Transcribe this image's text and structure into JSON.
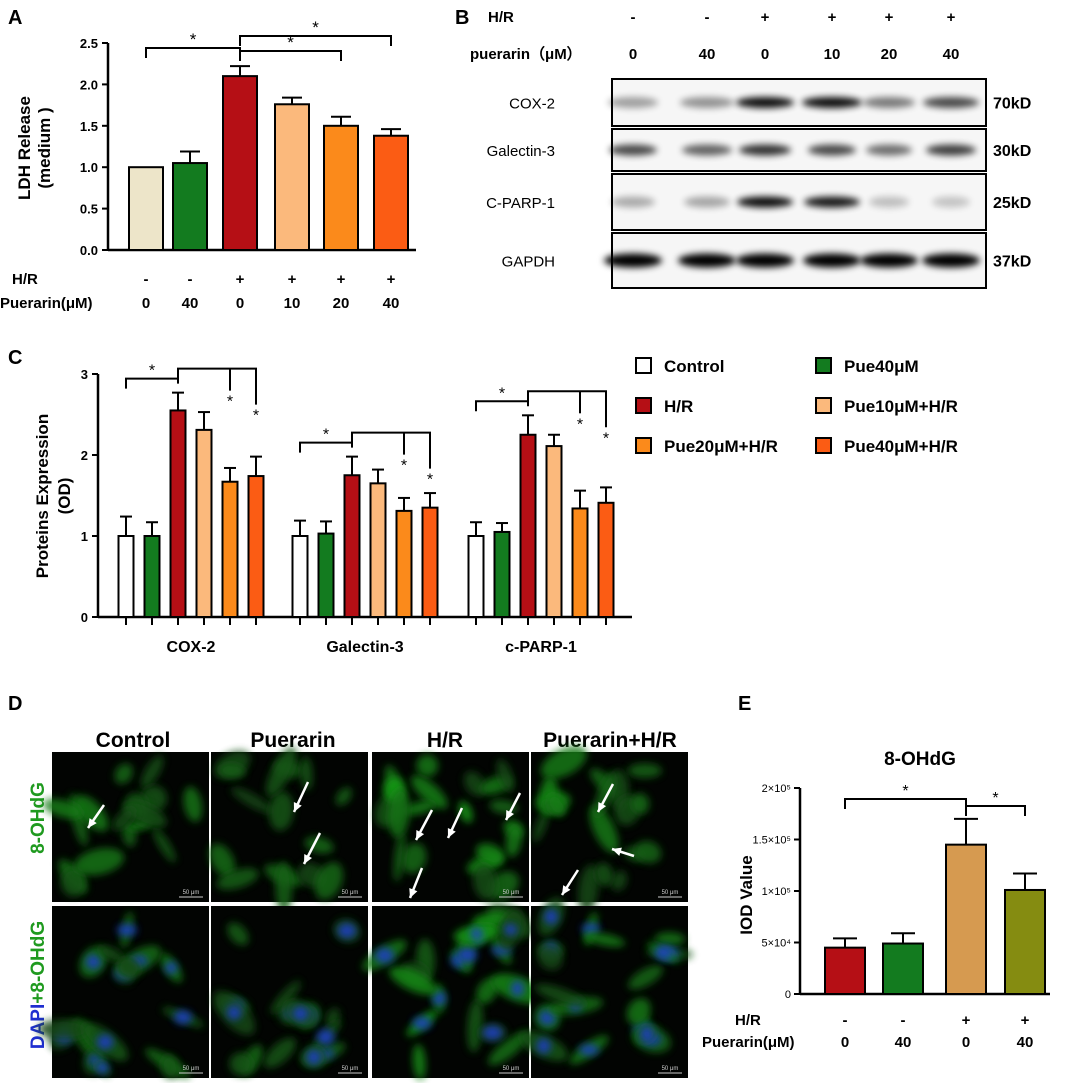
{
  "panels": {
    "A": {
      "letter": "A"
    },
    "B": {
      "letter": "B"
    },
    "C": {
      "letter": "C"
    },
    "D": {
      "letter": "D"
    },
    "E": {
      "letter": "E"
    }
  },
  "colors": {
    "control": "#ede5c9",
    "pue40": "#137b1f",
    "hr": "#b50f15",
    "pue10": "#fbb97c",
    "pue20": "#fb8a1b",
    "pue40hr": "#fb5c14",
    "e_pue_hr": "#d69a50",
    "e_pue_hr40": "#858c11",
    "green_label": "#1f9a1f",
    "blue_label": "#1f2fd0"
  },
  "chart_data": [
    {
      "panel": "A",
      "type": "bar",
      "ylabel": "LDH Release\n(medium )",
      "ylim": [
        0,
        2.5
      ],
      "yticks": [
        "0.0",
        "0.5",
        "1.0",
        "1.5",
        "2.0",
        "2.5"
      ],
      "values": [
        1.0,
        1.05,
        2.1,
        1.76,
        1.5,
        1.38
      ],
      "errors": [
        0,
        0.14,
        0.12,
        0.08,
        0.11,
        0.08
      ],
      "condition_rows": [
        {
          "label": "H/R",
          "values": [
            "-",
            "-",
            "+",
            "+",
            "+",
            "+"
          ]
        },
        {
          "label": "Puerarin(μM)",
          "values": [
            "0",
            "40",
            "0",
            "10",
            "20",
            "40"
          ]
        }
      ],
      "significance": [
        "*",
        "*",
        "*"
      ]
    },
    {
      "panel": "C",
      "type": "bar",
      "ylabel": "Proteins Expression\n(OD)",
      "ylim": [
        0,
        3
      ],
      "yticks": [
        "0",
        "1",
        "2",
        "3"
      ],
      "categories": [
        "COX-2",
        "Galectin-3",
        "c-PARP-1"
      ],
      "series": [
        {
          "name": "Control",
          "values": [
            1.0,
            1.0,
            1.0
          ],
          "errors": [
            0.24,
            0.19,
            0.17
          ]
        },
        {
          "name": "Pue40μM",
          "values": [
            1.0,
            1.03,
            1.05
          ],
          "errors": [
            0.17,
            0.15,
            0.11
          ]
        },
        {
          "name": "H/R",
          "values": [
            2.55,
            1.75,
            2.25
          ],
          "errors": [
            0.22,
            0.23,
            0.24
          ]
        },
        {
          "name": "Pue10μM+H/R",
          "values": [
            2.31,
            1.65,
            2.11
          ],
          "errors": [
            0.22,
            0.17,
            0.14
          ]
        },
        {
          "name": "Pue20μM+H/R",
          "values": [
            1.67,
            1.31,
            1.34
          ],
          "errors": [
            0.17,
            0.16,
            0.22
          ]
        },
        {
          "name": "Pue40μM+H/R",
          "values": [
            1.74,
            1.35,
            1.41
          ],
          "errors": [
            0.24,
            0.18,
            0.19
          ]
        }
      ],
      "significance": [
        "*",
        "*",
        "*",
        "*",
        "*",
        "*",
        "*",
        "*",
        "*"
      ],
      "legend_position": "top-right"
    },
    {
      "panel": "E",
      "type": "bar",
      "title": "8-OHdG",
      "ylabel": "IOD Value",
      "ylim": [
        0,
        200000
      ],
      "yticks": [
        "0",
        "5×10⁴",
        "1×10⁵",
        "1.5×10⁵",
        "2×10⁵"
      ],
      "values": [
        45000,
        49000,
        145000,
        101000
      ],
      "errors": [
        9000,
        10000,
        25000,
        16000
      ],
      "condition_rows": [
        {
          "label": "H/R",
          "values": [
            "-",
            "-",
            "+",
            "+"
          ]
        },
        {
          "label": "Puerarin(μM)",
          "values": [
            "0",
            "40",
            "0",
            "40"
          ]
        }
      ],
      "significance": [
        "*",
        "*"
      ]
    }
  ],
  "blot": {
    "header_rows": [
      {
        "label": "H/R",
        "values": [
          "-",
          "-",
          "+",
          "+",
          "+",
          "+"
        ]
      },
      {
        "label": "puerarin（μM）",
        "values": [
          "0",
          "40",
          "0",
          "10",
          "20",
          "40"
        ]
      }
    ],
    "rows": [
      {
        "protein": "COX-2",
        "size": "70kD"
      },
      {
        "protein": "Galectin-3",
        "size": "30kD"
      },
      {
        "protein": "C-PARP-1",
        "size": "25kD"
      },
      {
        "protein": "GAPDH",
        "size": "37kD"
      }
    ]
  },
  "micrographs": {
    "columns": [
      "Control",
      "Puerarin",
      "H/R",
      "Puerarin+H/R"
    ],
    "row_labels": {
      "top": "8-OHdG",
      "bottom_blue": "DAPI",
      "bottom_sep": "+",
      "bottom_green": "8-OHdG"
    },
    "scale_bar": "50 μm"
  }
}
